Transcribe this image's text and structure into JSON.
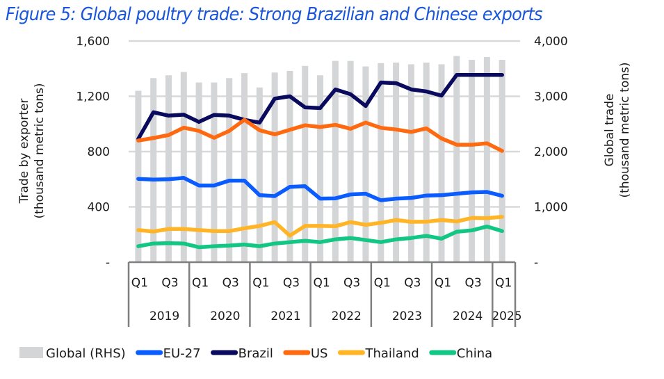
{
  "title": "Figure 5: Global poultry trade: Strong Brazilian and Chinese exports",
  "chart_data": {
    "type": "bar+line",
    "title": "Figure 5: Global poultry trade: Strong Brazilian and Chinese exports",
    "ylabel_left": [
      "Trade by exporter",
      "(thousand metric tons)"
    ],
    "ylabel_right": [
      "Global trade",
      "(thousand metric tons)"
    ],
    "ylim_left": [
      0,
      1600
    ],
    "ylim_right": [
      0,
      4000
    ],
    "yticks_left": [
      "-",
      "400",
      "800",
      "1,200",
      "1,600"
    ],
    "yticks_right": [
      "-",
      "1,000",
      "2,000",
      "3,000",
      "4,000"
    ],
    "grid": true,
    "legend_position": "bottom",
    "x": [
      "2019 Q1",
      "2019 Q2",
      "2019 Q3",
      "2019 Q4",
      "2020 Q1",
      "2020 Q2",
      "2020 Q3",
      "2020 Q4",
      "2021 Q1",
      "2021 Q2",
      "2021 Q3",
      "2021 Q4",
      "2022 Q1",
      "2022 Q2",
      "2022 Q3",
      "2022 Q4",
      "2023 Q1",
      "2023 Q2",
      "2023 Q3",
      "2023 Q4",
      "2024 Q1",
      "2024 Q2",
      "2024 Q3",
      "2024 Q4",
      "2025 Q1"
    ],
    "quarter_labels": [
      "Q1",
      "",
      "Q3",
      "",
      "Q1",
      "",
      "Q3",
      "",
      "Q1",
      "",
      "Q3",
      "",
      "Q1",
      "",
      "Q3",
      "",
      "Q1",
      "",
      "Q3",
      "",
      "Q1",
      "",
      "Q3",
      "",
      "Q1"
    ],
    "year_groups": [
      {
        "label": "2019",
        "quarters": 4
      },
      {
        "label": "2020",
        "quarters": 4
      },
      {
        "label": "2021",
        "quarters": 4
      },
      {
        "label": "2022",
        "quarters": 4
      },
      {
        "label": "2023",
        "quarters": 4
      },
      {
        "label": "2024",
        "quarters": 4
      },
      {
        "label": "2025",
        "quarters": 1
      }
    ],
    "bar_series": {
      "name": "Global (RHS)",
      "axis": "right",
      "color": "#d4d5d7",
      "values": [
        3100,
        3330,
        3380,
        3440,
        3250,
        3250,
        3330,
        3420,
        3160,
        3430,
        3460,
        3550,
        3380,
        3640,
        3640,
        3540,
        3600,
        3610,
        3580,
        3610,
        3580,
        3730,
        3660,
        3710,
        3660
      ]
    },
    "series": [
      {
        "name": "EU-27",
        "axis": "left",
        "color": "#0a5cff",
        "values": [
          603,
          597,
          600,
          610,
          555,
          555,
          590,
          590,
          485,
          478,
          545,
          550,
          460,
          462,
          490,
          495,
          448,
          460,
          465,
          482,
          485,
          495,
          505,
          508,
          480
        ]
      },
      {
        "name": "Brazil",
        "axis": "left",
        "color": "#0a0a5e",
        "values": [
          892,
          1085,
          1060,
          1067,
          1015,
          1065,
          1060,
          1030,
          1010,
          1183,
          1200,
          1120,
          1115,
          1250,
          1215,
          1130,
          1300,
          1295,
          1250,
          1235,
          1205,
          1355,
          1355,
          1355,
          1355
        ]
      },
      {
        "name": "US",
        "axis": "left",
        "color": "#ff6a10",
        "values": [
          880,
          898,
          920,
          973,
          950,
          900,
          950,
          1030,
          955,
          925,
          958,
          990,
          978,
          993,
          965,
          1010,
          972,
          960,
          942,
          968,
          895,
          850,
          850,
          860,
          805
        ]
      },
      {
        "name": "Thailand",
        "axis": "left",
        "color": "#ffb526",
        "values": [
          232,
          222,
          240,
          240,
          232,
          225,
          225,
          245,
          262,
          290,
          192,
          262,
          262,
          260,
          290,
          270,
          285,
          305,
          292,
          293,
          305,
          295,
          320,
          318,
          328
        ]
      },
      {
        "name": "China",
        "axis": "left",
        "color": "#12c784",
        "values": [
          115,
          135,
          138,
          135,
          108,
          115,
          120,
          128,
          115,
          135,
          145,
          155,
          145,
          165,
          175,
          160,
          145,
          165,
          175,
          190,
          170,
          220,
          230,
          258,
          225
        ]
      }
    ]
  },
  "legend": [
    {
      "label": "Global (RHS)",
      "kind": "bar",
      "color": "#d4d5d7"
    },
    {
      "label": "EU-27",
      "kind": "line",
      "color": "#0a5cff"
    },
    {
      "label": "Brazil",
      "kind": "line",
      "color": "#0a0a5e"
    },
    {
      "label": "US",
      "kind": "line",
      "color": "#ff6a10"
    },
    {
      "label": "Thailand",
      "kind": "line",
      "color": "#ffb526"
    },
    {
      "label": "China",
      "kind": "line",
      "color": "#12c784"
    }
  ]
}
